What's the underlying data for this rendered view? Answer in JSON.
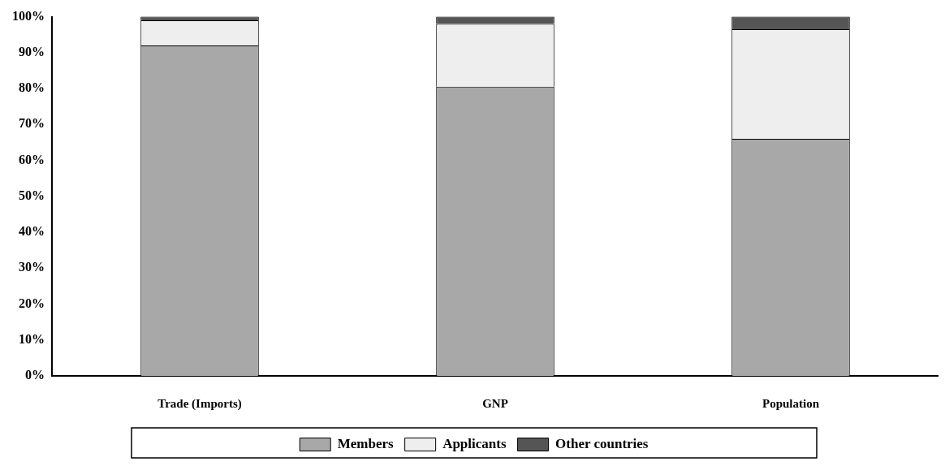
{
  "chart_data": {
    "type": "bar",
    "stacked": true,
    "categories": [
      "Trade (Imports)",
      "GNP",
      "Population"
    ],
    "series": [
      {
        "name": "Members",
        "color": "#a8a8a8",
        "values": [
          92,
          80.5,
          66
        ]
      },
      {
        "name": "Applicants",
        "color": "#eeeeee",
        "values": [
          7,
          17.5,
          30.5
        ]
      },
      {
        "name": "Other countries",
        "color": "#555555",
        "values": [
          1,
          2,
          3.5
        ]
      }
    ],
    "ylim": [
      0,
      100
    ],
    "yticks": [
      {
        "value": 0,
        "label": "0%"
      },
      {
        "value": 10,
        "label": "10%"
      },
      {
        "value": 20,
        "label": "20%"
      },
      {
        "value": 30,
        "label": "30%"
      },
      {
        "value": 40,
        "label": "40%"
      },
      {
        "value": 50,
        "label": "50%"
      },
      {
        "value": 60,
        "label": "60%"
      },
      {
        "value": 70,
        "label": "70%"
      },
      {
        "value": 80,
        "label": "80%"
      },
      {
        "value": 90,
        "label": "90%"
      },
      {
        "value": 100,
        "label": "100%"
      }
    ],
    "grid": false,
    "legend": "bottom"
  }
}
